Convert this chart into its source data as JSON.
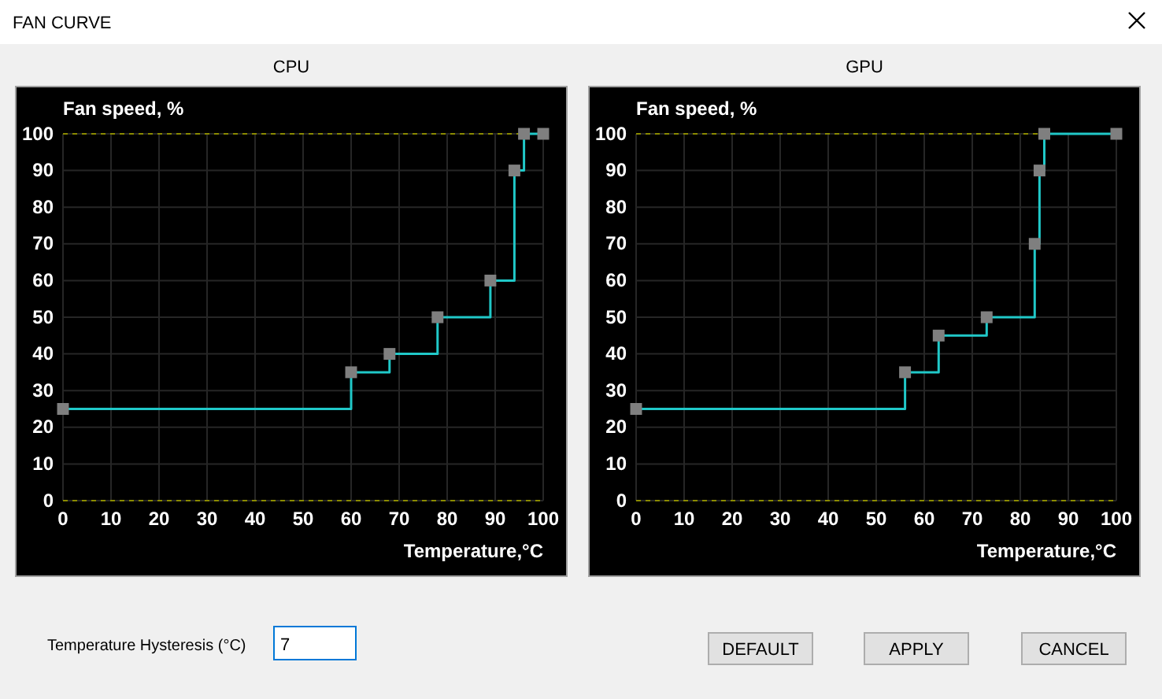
{
  "chart_data": [
    {
      "type": "step",
      "title": "CPU",
      "ylabel": "Fan speed, %",
      "xlabel": "Temperature,°C",
      "x": [
        0,
        60,
        68,
        78,
        89,
        94,
        96,
        100
      ],
      "series": [
        {
          "color": "#20c8c8",
          "values": [
            25,
            35,
            40,
            50,
            60,
            90,
            100,
            100
          ]
        }
      ],
      "xlim": [
        0,
        100
      ],
      "ylim": [
        0,
        100
      ],
      "xticks": [
        0,
        10,
        20,
        30,
        40,
        50,
        60,
        70,
        80,
        90,
        100
      ],
      "yticks": [
        0,
        10,
        20,
        30,
        40,
        50,
        60,
        70,
        80,
        90,
        100
      ],
      "grid": true,
      "marker": "square",
      "ref_lines": [
        {
          "axis": "y",
          "value": 0,
          "color": "#8a8a00",
          "line_style": "dashed"
        },
        {
          "axis": "y",
          "value": 100,
          "color": "#8a8a00",
          "line_style": "dashed"
        }
      ]
    },
    {
      "type": "step",
      "title": "GPU",
      "ylabel": "Fan speed, %",
      "xlabel": "Temperature,°C",
      "x": [
        0,
        56,
        63,
        73,
        83,
        84,
        85,
        100
      ],
      "series": [
        {
          "color": "#20c8c8",
          "values": [
            25,
            35,
            45,
            50,
            70,
            90,
            100,
            100
          ]
        }
      ],
      "xlim": [
        0,
        100
      ],
      "ylim": [
        0,
        100
      ],
      "xticks": [
        0,
        10,
        20,
        30,
        40,
        50,
        60,
        70,
        80,
        90,
        100
      ],
      "yticks": [
        0,
        10,
        20,
        30,
        40,
        50,
        60,
        70,
        80,
        90,
        100
      ],
      "grid": true,
      "marker": "square",
      "ref_lines": [
        {
          "axis": "y",
          "value": 0,
          "color": "#8a8a00",
          "line_style": "dashed"
        },
        {
          "axis": "y",
          "value": 100,
          "color": "#8a8a00",
          "line_style": "dashed"
        }
      ]
    },
    {
      "type": "other",
      "title": "FAN CURVE",
      "annotations": [
        "Temperature Hysteresis (°C)",
        "7",
        "DEFAULT",
        "APPLY",
        "CANCEL"
      ]
    }
  ]
}
